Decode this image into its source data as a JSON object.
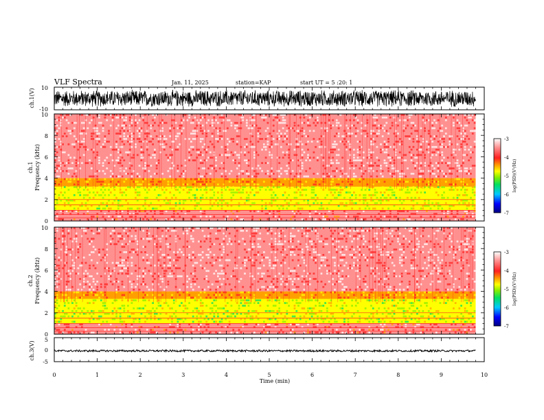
{
  "header": {
    "title": "VLF Spectra",
    "date": "Jan. 11, 2025",
    "station": "station=KAP",
    "start": "start UT =  5 :20: 1"
  },
  "colors": {
    "colormap": [
      "#000080",
      "#0000ff",
      "#00c8ff",
      "#00e060",
      "#88ee00",
      "#ffff00",
      "#ffa000",
      "#ff2020",
      "#ff9090",
      "#ffffff"
    ],
    "waveform": "#000000",
    "axis": "#000000"
  },
  "chart_data": [
    {
      "type": "line",
      "panel": "ch1-waveform",
      "ylabel": "ch.1(V)",
      "ylim": [
        -10,
        10
      ],
      "yticks": [
        "10",
        "-10"
      ],
      "description_values": "dense oscillating signal spanning roughly -8 to 8 V across 0-9.8 min",
      "x_extent_min": 9.8,
      "amplitude_V": 8
    },
    {
      "type": "heatmap",
      "panel": "ch1-spectrogram",
      "ylabel_line1": "ch.1",
      "ylabel_line2": "Frequency (kHz)",
      "ylim": [
        0,
        10
      ],
      "yticks": [
        "0",
        "2",
        "4",
        "6",
        "8",
        "10"
      ],
      "x_extent_min": 9.8,
      "bands_kHz": [
        {
          "from": 0,
          "to": 1,
          "level": -3.6
        },
        {
          "from": 1,
          "to": 3.2,
          "level": -4.9
        },
        {
          "from": 3.2,
          "to": 4,
          "level": -4.3
        },
        {
          "from": 4,
          "to": 10,
          "level": -3.4
        }
      ],
      "colorbar": {
        "label": "log(PSD)(V²/Hz)",
        "range": [
          -7,
          -3
        ],
        "ticks": [
          "-3",
          "-4",
          "-5",
          "-6",
          "-7"
        ]
      }
    },
    {
      "type": "heatmap",
      "panel": "ch2-spectrogram",
      "ylabel_line1": "ch.2",
      "ylabel_line2": "Frequency (kHz)",
      "ylim": [
        0,
        10
      ],
      "yticks": [
        "0",
        "2",
        "4",
        "6",
        "8",
        "10"
      ],
      "x_extent_min": 9.8,
      "bands_kHz": [
        {
          "from": 0,
          "to": 1,
          "level": -3.6
        },
        {
          "from": 1,
          "to": 3.3,
          "level": -5.0
        },
        {
          "from": 3.3,
          "to": 4,
          "level": -4.3
        },
        {
          "from": 4,
          "to": 10,
          "level": -3.4
        }
      ],
      "colorbar": {
        "label": "log(PSD)(V²/Hz)",
        "range": [
          -7,
          -3
        ],
        "ticks": [
          "-3",
          "-4",
          "-5",
          "-6",
          "-7"
        ]
      }
    },
    {
      "type": "line",
      "panel": "ch3-waveform",
      "ylabel": "ch.3(V)",
      "ylim": [
        -5,
        5
      ],
      "yticks": [
        "5",
        "0",
        "-5"
      ],
      "x_extent_min": 9.8,
      "offset_V": -0.5,
      "amplitude_V": 0.4
    }
  ],
  "xaxis": {
    "label": "Time (min)",
    "range": [
      0,
      10
    ],
    "ticks": [
      "0",
      "1",
      "2",
      "3",
      "4",
      "5",
      "6",
      "7",
      "8",
      "9",
      "10"
    ]
  }
}
